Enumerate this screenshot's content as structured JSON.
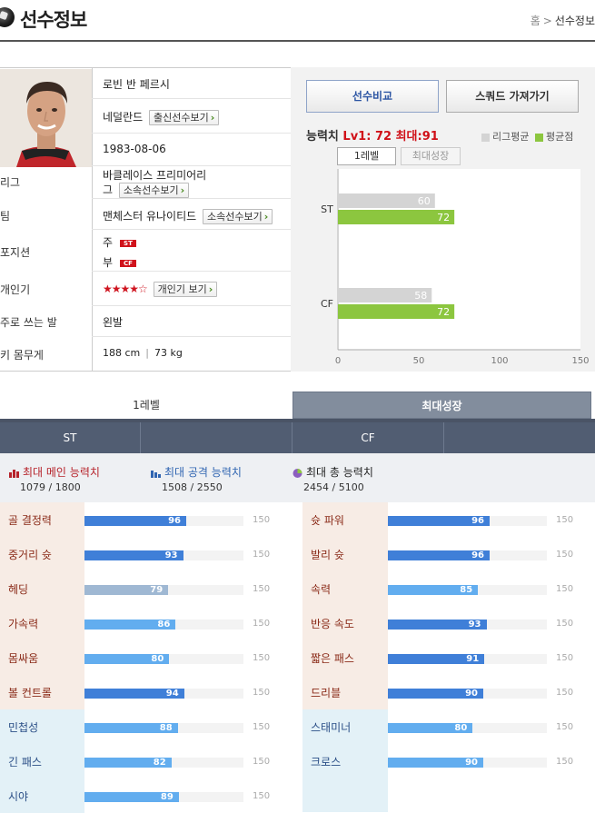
{
  "header": {
    "title": "선수정보",
    "breadcrumb": {
      "home": "홈",
      "separator": ">",
      "current": "선수정보"
    }
  },
  "player": {
    "name": "로빈 반 페르시",
    "nationality": "네덜란드",
    "nationality_btn": "출신선수보기",
    "birth": "1983-08-06",
    "league_label": "리그",
    "league_line1": "바클레이스 프리미어리",
    "league_line2": "그",
    "league_btn": "소속선수보기",
    "team_label": "팀",
    "team": "맨체스터 유나이티드",
    "team_btn": "소속선수보기",
    "position_label": "포지션",
    "position_main": "주",
    "position_main_code": "ST",
    "position_sub": "부",
    "position_sub_code": "CF",
    "popularity_label": "개인기",
    "popularity_stars": "★★★★☆",
    "popularity_btn": "개인기 보기",
    "foot_label": "주로 쓰는 발",
    "foot": "왼발",
    "body_label": "키 몸무게",
    "height": "188 cm",
    "weight": "73 kg"
  },
  "actions": {
    "compare": "선수비교",
    "squad": "스쿼드 가져가기"
  },
  "ability": {
    "label": "능력치",
    "lv": "Lv1: 72",
    "max": "최대:91",
    "legend_league": "리그평균",
    "legend_avg": "평균점",
    "tab_level": "1레벨",
    "tab_max": "최대성장"
  },
  "chart_data": {
    "type": "bar",
    "orientation": "horizontal",
    "categories": [
      "ST",
      "CF"
    ],
    "series": [
      {
        "name": "리그평균",
        "values": [
          60,
          58
        ],
        "color": "#d4d4d4"
      },
      {
        "name": "평균점",
        "values": [
          72,
          72
        ],
        "color": "#8cc63f"
      }
    ],
    "xlim": [
      0,
      150
    ],
    "xticks": [
      "0",
      "50",
      "100",
      "150"
    ],
    "grid": false,
    "legend": "top-right"
  },
  "tabs": {
    "level": "1레벨",
    "max_growth": "최대성장"
  },
  "positions": [
    "ST",
    "CF"
  ],
  "summary": [
    {
      "title": "최대 메인 능력치",
      "value": "1079 / 1800",
      "color": "#b6222a"
    },
    {
      "title": "최대 공격 능력치",
      "value": "1508 / 2550",
      "color": "#2f64b1"
    },
    {
      "title": "최대 총 능력치",
      "value": "2454 / 5100",
      "color": "#222222"
    }
  ],
  "stats_max": "150",
  "stats_left": [
    {
      "label": "골 결정력",
      "value": 96,
      "kind": "main"
    },
    {
      "label": "중거리 슛",
      "value": 93,
      "kind": "main"
    },
    {
      "label": "헤딩",
      "value": 79,
      "kind": "main-dim"
    },
    {
      "label": "가속력",
      "value": 86,
      "kind": "main-light"
    },
    {
      "label": "몸싸움",
      "value": 80,
      "kind": "main-light"
    },
    {
      "label": "볼 컨트롤",
      "value": 94,
      "kind": "main"
    },
    {
      "label": "민첩성",
      "value": 88,
      "kind": "sub"
    },
    {
      "label": "긴 패스",
      "value": 82,
      "kind": "sub"
    },
    {
      "label": "시야",
      "value": 89,
      "kind": "sub"
    }
  ],
  "stats_right": [
    {
      "label": "슛 파워",
      "value": 96,
      "kind": "main"
    },
    {
      "label": "발리 슛",
      "value": 96,
      "kind": "main"
    },
    {
      "label": "속력",
      "value": 85,
      "kind": "main-light"
    },
    {
      "label": "반응 속도",
      "value": 93,
      "kind": "main"
    },
    {
      "label": "짧은 패스",
      "value": 91,
      "kind": "main"
    },
    {
      "label": "드리블",
      "value": 90,
      "kind": "main"
    },
    {
      "label": "스태미너",
      "value": 80,
      "kind": "sub"
    },
    {
      "label": "크로스",
      "value": 90,
      "kind": "sub"
    }
  ],
  "colors": {
    "main_bar": "#3f7fd8",
    "light_bar": "#62adef",
    "dim_bar": "#9fb8d3",
    "main_bg": "#f7ece5",
    "sub_bg": "#e3f1f7",
    "main_text": "#8a2a18",
    "sub_text": "#2a4e86"
  }
}
